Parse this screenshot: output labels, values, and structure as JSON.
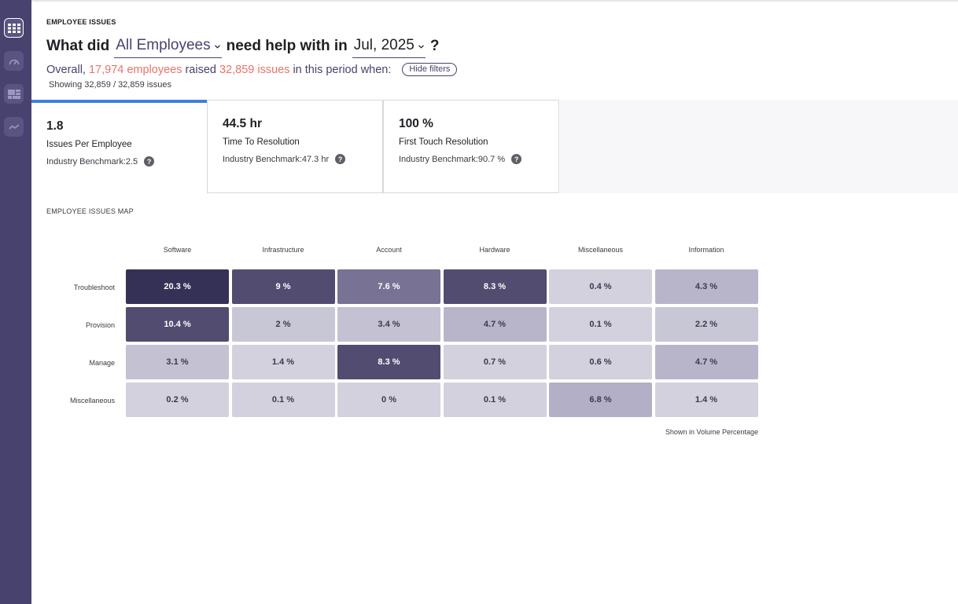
{
  "sidebar": {
    "items": [
      {
        "icon": "grid-icon",
        "active": true
      },
      {
        "icon": "speedometer-icon",
        "active": false
      },
      {
        "icon": "layout-icon",
        "active": false
      },
      {
        "icon": "trend-line-icon",
        "active": false
      }
    ],
    "colors": {
      "background": "#48426e",
      "accent": "#ffffff"
    }
  },
  "header": {
    "section_title": "EMPLOYEE ISSUES",
    "question_prefix": "What did",
    "audience_value": "All Employees",
    "question_middle": "need help with in",
    "period_value": "Jul, 2025",
    "question_suffix": "?"
  },
  "summary": {
    "prefix": "Overall,",
    "employees": "17,974 employees",
    "middle": "raised",
    "issues": "32,859 issues",
    "suffix": "in this period when:",
    "hide_filters_label": "Hide filters",
    "showing": "Showing 32,859 / 32,859 issues"
  },
  "metrics": [
    {
      "value": "1.8",
      "label": "Issues Per Employee",
      "benchmark": "Industry Benchmark:2.5",
      "active": true
    },
    {
      "value": "44.5 hr",
      "label": "Time To Resolution",
      "benchmark": "Industry Benchmark:47.3 hr",
      "active": false
    },
    {
      "value": "100 %",
      "label": "First Touch Resolution",
      "benchmark": "Industry Benchmark:90.7 %",
      "active": false
    }
  ],
  "help_glyph": "?",
  "issues_map": {
    "title": "EMPLOYEE ISSUES MAP",
    "columns": [
      "Software",
      "Infrastructure",
      "Account",
      "Hardware",
      "Miscellaneous",
      "Information"
    ],
    "rows": [
      {
        "label": "Troubleshoot",
        "cells": [
          "20.3 %",
          "9 %",
          "7.6 %",
          "8.3 %",
          "0.4 %",
          "4.3 %"
        ],
        "values": [
          20.3,
          9,
          7.6,
          8.3,
          0.4,
          4.3
        ]
      },
      {
        "label": "Provision",
        "cells": [
          "10.4 %",
          "2 %",
          "3.4 %",
          "4.7 %",
          "0.1 %",
          "2.2 %"
        ],
        "values": [
          10.4,
          2,
          3.4,
          4.7,
          0.1,
          2.2
        ]
      },
      {
        "label": "Manage",
        "cells": [
          "3.1 %",
          "1.4 %",
          "8.3 %",
          "0.7 %",
          "0.6 %",
          "4.7 %"
        ],
        "values": [
          3.1,
          1.4,
          8.3,
          0.7,
          0.6,
          4.7
        ]
      },
      {
        "label": "Miscellaneous",
        "cells": [
          "0.2 %",
          "0.1 %",
          "0 %",
          "0.1 %",
          "6.8 %",
          "1.4 %"
        ],
        "values": [
          0.2,
          0.1,
          0,
          0.1,
          6.8,
          1.4
        ]
      }
    ],
    "footnote": "Shown in Volume Percentage"
  },
  "colors": {
    "accent": "#3d7fde",
    "highlight": "#e8736c",
    "heat_darkest": "#353156",
    "heat_dark": "#524c70",
    "heat_medium": "#787394",
    "heat_light": "#b8b5cb",
    "heat_lightest": "#d2d1dd"
  }
}
